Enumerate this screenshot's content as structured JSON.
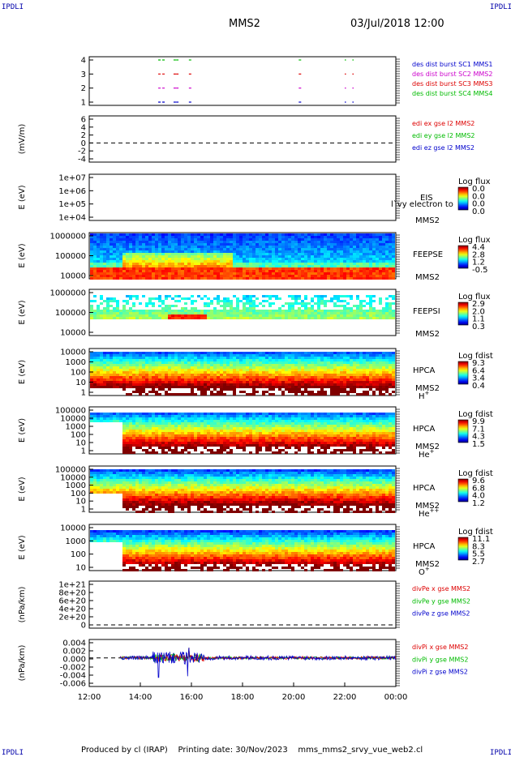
{
  "corners": {
    "tl": "IPDLI",
    "tr": "IPDLI",
    "bl": "IPDLI",
    "br": "IPDLI"
  },
  "header": {
    "spacecraft": "MMS2",
    "datetime": "03/Jul/2018 12:00"
  },
  "footer": {
    "producer": "Produced by cl (IRAP)",
    "printing_date": "Printing date: 30/Nov/2023",
    "filename": "mms_mms2_srvy_vue_web2.cl"
  },
  "chart_data": [
    {
      "type": "line",
      "name": "burst",
      "ytick_labels": [
        "4",
        "3",
        "2",
        "1"
      ],
      "legend": [
        {
          "label": "des dist burst SC1 MMS1",
          "color": "#0000cc"
        },
        {
          "label": "des dist burst SC2 MMS2",
          "color": "#cc00cc"
        },
        {
          "label": "des dist burst SC3 MMS3",
          "color": "#dd0000"
        },
        {
          "label": "des dist burst SC4 MMS4",
          "color": "#00bb00"
        }
      ],
      "x_segments_hours": [
        [
          14.7,
          15.0
        ],
        [
          15.3,
          15.4
        ],
        [
          15.4,
          15.5
        ],
        [
          15.9,
          16.0
        ],
        [
          20.2,
          20.3
        ],
        [
          22.0,
          22.05
        ],
        [
          22.3,
          22.35
        ]
      ]
    },
    {
      "type": "line",
      "name": "edi",
      "ylabel": "(mV/m)",
      "ytick_labels": [
        "6",
        "4",
        "2",
        "0",
        "-2",
        "-4"
      ],
      "legend": [
        {
          "label": "edi ex gse l2 MMS2",
          "color": "#dd0000"
        },
        {
          "label": "edi ey gse l2 MMS2",
          "color": "#00bb00"
        },
        {
          "label": "edi ez gse l2 MMS2",
          "color": "#0000cc"
        }
      ]
    },
    {
      "type": "heatmap",
      "name": "eis",
      "ylabel": "E (eV)",
      "ytick_labels": [
        "1e+07",
        "1e+06",
        "1e+05",
        "1e+04"
      ],
      "labels": [
        "EIS",
        "MMS2"
      ],
      "overlay_text": "l`vy electron to",
      "cb_title": "Log flux",
      "cb_ticks": [
        "0.0",
        "0.0",
        "0.0",
        "0.0"
      ]
    },
    {
      "type": "heatmap",
      "name": "feepse",
      "ylabel": "E (eV)",
      "ytick_labels": [
        "1000000",
        "100000",
        "10000"
      ],
      "labels": [
        "FEEPSE",
        "MMS2"
      ],
      "cb_title": "Log flux",
      "cb_ticks": [
        "4.4",
        "2.8",
        "1.2",
        "-0.5"
      ]
    },
    {
      "type": "heatmap",
      "name": "feepsi",
      "ylabel": "E (eV)",
      "ytick_labels": [
        "1000000",
        "100000",
        "10000"
      ],
      "labels": [
        "FEEPSI",
        "MMS2"
      ],
      "cb_title": "Log flux",
      "cb_ticks": [
        "2.9",
        "2.0",
        "1.1",
        "0.3"
      ]
    },
    {
      "type": "heatmap",
      "name": "hpca_h",
      "ylabel": "E (eV)",
      "ytick_labels": [
        "10000",
        "1000",
        "100",
        "10",
        "1"
      ],
      "labels": [
        "HPCA",
        "MMS2",
        "H"
      ],
      "species_sup": "+",
      "cb_title": "Log fdist",
      "cb_ticks": [
        "9.3",
        "6.4",
        "3.4",
        "0.4"
      ]
    },
    {
      "type": "heatmap",
      "name": "hpca_he",
      "ylabel": "E (eV)",
      "ytick_labels": [
        "100000",
        "10000",
        "1000",
        "100",
        "10",
        "1"
      ],
      "labels": [
        "HPCA",
        "MMS2",
        "He"
      ],
      "species_sup": "+",
      "cb_title": "Log fdist",
      "cb_ticks": [
        "9.9",
        "7.1",
        "4.3",
        "1.5"
      ]
    },
    {
      "type": "heatmap",
      "name": "hpca_hepp",
      "ylabel": "E (eV)",
      "ytick_labels": [
        "100000",
        "10000",
        "1000",
        "100",
        "10",
        "1"
      ],
      "labels": [
        "HPCA",
        "MMS2",
        "He"
      ],
      "species_sup": "++",
      "cb_title": "Log fdist",
      "cb_ticks": [
        "9.6",
        "6.8",
        "4.0",
        "1.2"
      ]
    },
    {
      "type": "heatmap",
      "name": "hpca_o",
      "ylabel": "E (eV)",
      "ytick_labels": [
        "10000",
        "1000",
        "100",
        "10"
      ],
      "labels": [
        "HPCA",
        "MMS2",
        "O"
      ],
      "species_sup": "+",
      "cb_title": "Log fdist",
      "cb_ticks": [
        "11.1",
        "8.3",
        "5.5",
        "2.7"
      ]
    },
    {
      "type": "line",
      "name": "divpe",
      "ylabel": "(nPa/km)",
      "ytick_labels": [
        "1e+21",
        "8e+20",
        "6e+20",
        "4e+20",
        "2e+20",
        "0"
      ],
      "legend": [
        {
          "label": "divPe x gse MMS2",
          "color": "#dd0000"
        },
        {
          "label": "divPe y gse MMS2",
          "color": "#00bb00"
        },
        {
          "label": "divPe z gse MMS2",
          "color": "#0000cc"
        }
      ]
    },
    {
      "type": "line",
      "name": "divpi",
      "ylabel": "(nPa/km)",
      "ytick_labels": [
        "0.004",
        "0.002",
        "0.000",
        "-0.002",
        "-0.004",
        "-0.006"
      ],
      "ylim": [
        -0.007,
        0.0045
      ],
      "legend": [
        {
          "label": "divPi x gse MMS2",
          "color": "#dd0000"
        },
        {
          "label": "divPi y gse MMS2",
          "color": "#00bb00"
        },
        {
          "label": "divPi z gse MMS2",
          "color": "#0000cc"
        }
      ]
    }
  ],
  "x_axis": {
    "tick_labels": [
      "12:00",
      "14:00",
      "16:00",
      "18:00",
      "20:00",
      "22:00",
      "00:00"
    ],
    "range_hours": [
      12,
      24
    ]
  }
}
